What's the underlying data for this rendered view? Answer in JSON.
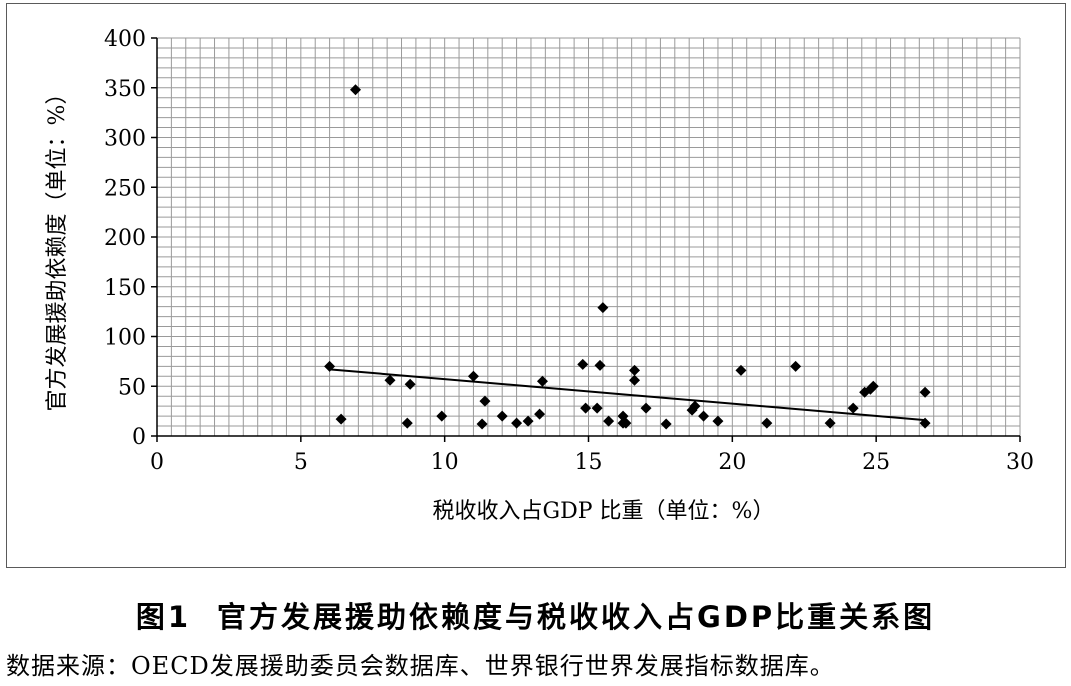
{
  "chart_data": {
    "type": "scatter",
    "xlabel": "税收收入占GDP 比重（单位：%）",
    "ylabel": "官方发展援助依赖度（单位：%）",
    "xlim": [
      0,
      30
    ],
    "ylim": [
      0,
      400
    ],
    "x_ticks": [
      0,
      5,
      10,
      15,
      20,
      25,
      30
    ],
    "y_ticks": [
      0,
      50,
      100,
      150,
      200,
      250,
      300,
      350,
      400
    ],
    "grid": true,
    "marker": "diamond",
    "trendline": {
      "type": "linear",
      "x": [
        6.0,
        26.7
      ],
      "y": [
        67,
        16
      ]
    },
    "points": [
      {
        "x": 6.0,
        "y": 70
      },
      {
        "x": 6.4,
        "y": 17
      },
      {
        "x": 6.9,
        "y": 348
      },
      {
        "x": 8.1,
        "y": 56
      },
      {
        "x": 8.7,
        "y": 13
      },
      {
        "x": 8.8,
        "y": 52
      },
      {
        "x": 9.9,
        "y": 20
      },
      {
        "x": 11.0,
        "y": 60
      },
      {
        "x": 11.3,
        "y": 12
      },
      {
        "x": 11.4,
        "y": 35
      },
      {
        "x": 12.0,
        "y": 20
      },
      {
        "x": 12.5,
        "y": 13
      },
      {
        "x": 12.9,
        "y": 15
      },
      {
        "x": 13.3,
        "y": 22
      },
      {
        "x": 13.4,
        "y": 55
      },
      {
        "x": 14.8,
        "y": 72
      },
      {
        "x": 14.9,
        "y": 28
      },
      {
        "x": 15.3,
        "y": 28
      },
      {
        "x": 15.4,
        "y": 71
      },
      {
        "x": 15.5,
        "y": 129
      },
      {
        "x": 15.7,
        "y": 15
      },
      {
        "x": 16.2,
        "y": 20
      },
      {
        "x": 16.2,
        "y": 13
      },
      {
        "x": 16.3,
        "y": 13
      },
      {
        "x": 16.6,
        "y": 66
      },
      {
        "x": 16.6,
        "y": 56
      },
      {
        "x": 17.0,
        "y": 28
      },
      {
        "x": 17.7,
        "y": 12
      },
      {
        "x": 18.6,
        "y": 26
      },
      {
        "x": 18.7,
        "y": 30
      },
      {
        "x": 19.0,
        "y": 20
      },
      {
        "x": 19.5,
        "y": 15
      },
      {
        "x": 20.3,
        "y": 66
      },
      {
        "x": 21.2,
        "y": 13
      },
      {
        "x": 22.2,
        "y": 70
      },
      {
        "x": 23.4,
        "y": 13
      },
      {
        "x": 24.2,
        "y": 28
      },
      {
        "x": 24.6,
        "y": 44
      },
      {
        "x": 24.8,
        "y": 47
      },
      {
        "x": 24.9,
        "y": 50
      },
      {
        "x": 26.7,
        "y": 44
      },
      {
        "x": 26.7,
        "y": 13
      }
    ],
    "colors": {
      "marker": "#000000",
      "grid": "#9a9a9a",
      "axis": "#000000",
      "frame": "#5a5a5a"
    }
  },
  "caption": {
    "number": "图1",
    "title": "官方发展援助依赖度与税收收入占GDP比重关系图"
  },
  "source_note": "数据来源：OECD发展援助委员会数据库、世界银行世界发展指标数据库。"
}
